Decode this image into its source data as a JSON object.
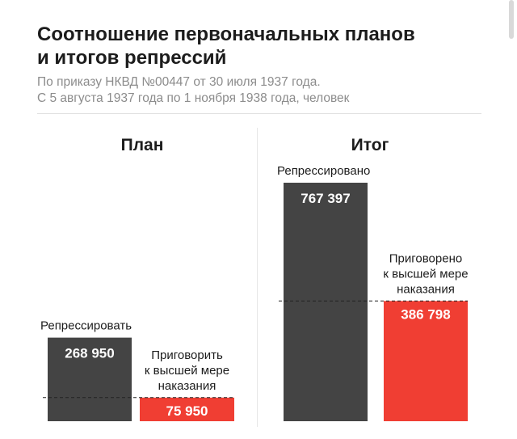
{
  "title_lines": [
    "Соотношение первоначальных планов",
    "и итогов репрессий"
  ],
  "subtitle_lines": [
    "По приказу НКВД №00447 от 30 июля 1937 года.",
    "С 5 августа 1937 года по 1 ноября 1938 года, человек"
  ],
  "colors": {
    "dark": "#444444",
    "red": "#f03e33",
    "divider": "#e1e1e1"
  },
  "chart_data": [
    {
      "type": "bar",
      "title": "План",
      "categories": [
        "Репрессировать",
        "Приговорить к высшей мере наказания"
      ],
      "category_lines": [
        [
          "Репрессировать"
        ],
        [
          "Приговорить",
          "к высшей мере",
          "наказания"
        ]
      ],
      "values": [
        268950,
        75950
      ],
      "value_labels": [
        "268 950",
        "75 950"
      ]
    },
    {
      "type": "bar",
      "title": "Итог",
      "categories": [
        "Репрессировано",
        "Приговорено к высшей мере наказания"
      ],
      "category_lines": [
        [
          "Репрессировано"
        ],
        [
          "Приговорено",
          "к высшей мере",
          "наказания"
        ]
      ],
      "values": [
        767397,
        386798
      ],
      "value_labels": [
        "767 397",
        "386 798"
      ]
    }
  ]
}
